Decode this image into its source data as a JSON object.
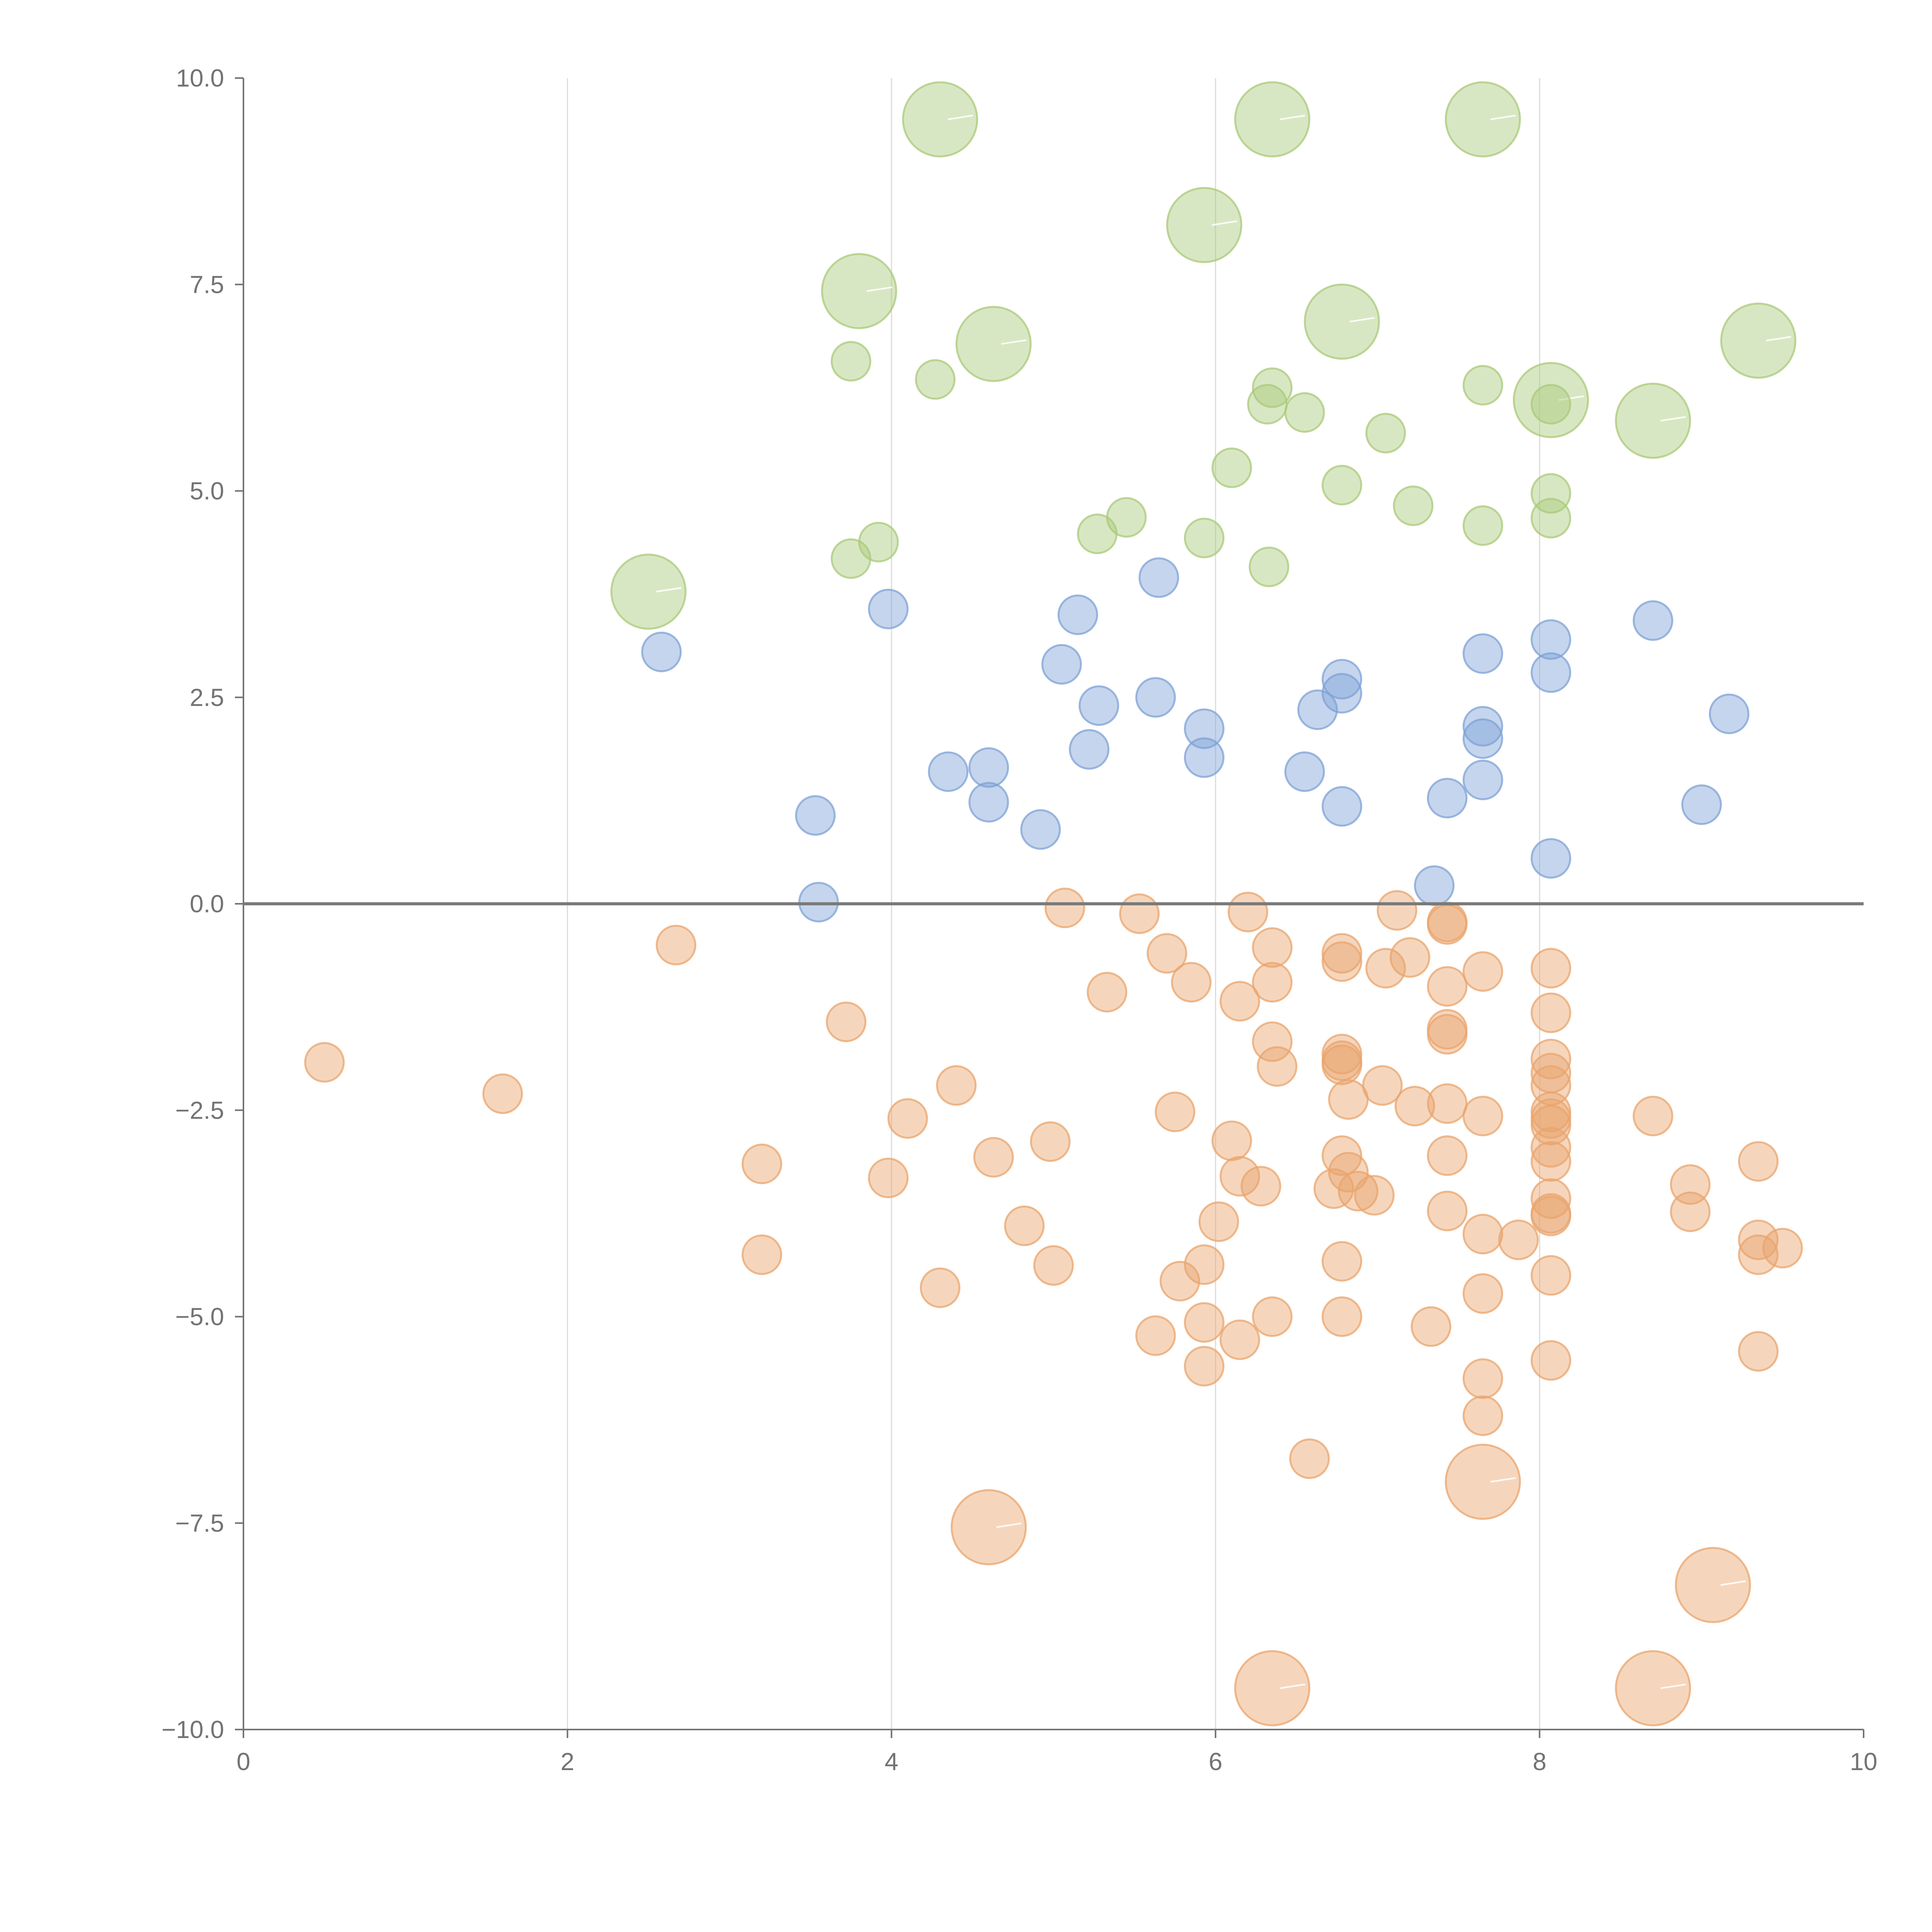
{
  "chart_data": {
    "type": "scatter",
    "title": "",
    "xlabel": "",
    "ylabel": "",
    "xlim": [
      0,
      10
    ],
    "ylim": [
      -10,
      10
    ],
    "x_ticks": [
      "0",
      "2",
      "4",
      "6",
      "8",
      "10"
    ],
    "y_ticks": [
      "10.0",
      "7.5",
      "5.0",
      "2.5",
      "0.0",
      "−2.5",
      "−5.0",
      "−7.5",
      "−10.0"
    ],
    "grid": "vertical only",
    "reference_line_y": 0,
    "colors": {
      "green": "#a9c97a",
      "blue": "#7ea1d6",
      "orange": "#e9a46c"
    },
    "series": [
      {
        "color_key": "green",
        "points": [
          [
            4.3,
            9.5,
            "large"
          ],
          [
            6.35,
            9.5,
            "large"
          ],
          [
            7.65,
            9.5,
            "large"
          ],
          [
            5.93,
            8.22,
            "large"
          ],
          [
            3.8,
            7.42,
            "large"
          ],
          [
            6.78,
            7.05,
            "large"
          ],
          [
            4.63,
            6.78,
            "large"
          ],
          [
            9.35,
            6.82,
            "large"
          ],
          [
            8.07,
            6.1,
            "large"
          ],
          [
            8.7,
            5.85,
            "large"
          ],
          [
            2.5,
            3.78,
            "large"
          ],
          [
            3.75,
            6.57,
            "small"
          ],
          [
            4.27,
            6.35,
            "small"
          ],
          [
            6.35,
            6.25,
            "small"
          ],
          [
            6.32,
            6.05,
            "small"
          ],
          [
            6.55,
            5.95,
            "small"
          ],
          [
            7.65,
            6.28,
            "small"
          ],
          [
            8.07,
            6.05,
            "small"
          ],
          [
            7.05,
            5.7,
            "small"
          ],
          [
            6.1,
            5.28,
            "small"
          ],
          [
            6.78,
            5.07,
            "small"
          ],
          [
            8.07,
            4.97,
            "small"
          ],
          [
            7.22,
            4.82,
            "small"
          ],
          [
            5.45,
            4.68,
            "small"
          ],
          [
            8.07,
            4.67,
            "small"
          ],
          [
            7.65,
            4.58,
            "small"
          ],
          [
            5.27,
            4.48,
            "small"
          ],
          [
            5.93,
            4.43,
            "small"
          ],
          [
            3.92,
            4.38,
            "small"
          ],
          [
            3.75,
            4.18,
            "small"
          ],
          [
            6.33,
            4.08,
            "small"
          ]
        ]
      },
      {
        "color_key": "blue",
        "points": [
          [
            5.65,
            3.95,
            "small"
          ],
          [
            3.98,
            3.57,
            "small"
          ],
          [
            5.15,
            3.5,
            "small"
          ],
          [
            8.7,
            3.43,
            "small"
          ],
          [
            8.07,
            3.2,
            "small"
          ],
          [
            2.58,
            3.05,
            "small"
          ],
          [
            7.65,
            3.03,
            "small"
          ],
          [
            5.05,
            2.9,
            "small"
          ],
          [
            8.07,
            2.8,
            "small"
          ],
          [
            6.78,
            2.72,
            "small"
          ],
          [
            6.78,
            2.55,
            "small"
          ],
          [
            5.63,
            2.5,
            "small"
          ],
          [
            5.28,
            2.4,
            "small"
          ],
          [
            6.63,
            2.35,
            "small"
          ],
          [
            9.17,
            2.3,
            "small"
          ],
          [
            5.93,
            2.12,
            "small"
          ],
          [
            7.65,
            2.15,
            "small"
          ],
          [
            7.65,
            2.0,
            "small"
          ],
          [
            5.22,
            1.87,
            "small"
          ],
          [
            5.93,
            1.77,
            "small"
          ],
          [
            4.6,
            1.65,
            "small"
          ],
          [
            4.35,
            1.6,
            "small"
          ],
          [
            6.55,
            1.6,
            "small"
          ],
          [
            7.65,
            1.5,
            "small"
          ],
          [
            7.43,
            1.28,
            "small"
          ],
          [
            4.6,
            1.23,
            "small"
          ],
          [
            6.78,
            1.18,
            "small"
          ],
          [
            9.0,
            1.2,
            "small"
          ],
          [
            3.53,
            1.07,
            "small"
          ],
          [
            4.92,
            0.9,
            "small"
          ],
          [
            8.07,
            0.55,
            "small"
          ],
          [
            7.35,
            0.22,
            "small"
          ],
          [
            3.55,
            0.02,
            "small"
          ]
        ]
      },
      {
        "color_key": "orange",
        "points": [
          [
            5.07,
            -0.05,
            "small"
          ],
          [
            5.53,
            -0.12,
            "small"
          ],
          [
            6.2,
            -0.1,
            "small"
          ],
          [
            7.12,
            -0.08,
            "small"
          ],
          [
            7.43,
            -0.22,
            "small"
          ],
          [
            7.43,
            -0.25,
            "small"
          ],
          [
            2.67,
            -0.5,
            "small"
          ],
          [
            6.35,
            -0.53,
            "small"
          ],
          [
            5.7,
            -0.6,
            "small"
          ],
          [
            6.78,
            -0.6,
            "small"
          ],
          [
            7.2,
            -0.65,
            "small"
          ],
          [
            6.78,
            -0.7,
            "small"
          ],
          [
            7.05,
            -0.78,
            "small"
          ],
          [
            8.07,
            -0.78,
            "small"
          ],
          [
            7.65,
            -0.82,
            "small"
          ],
          [
            5.85,
            -0.95,
            "small"
          ],
          [
            6.35,
            -0.95,
            "small"
          ],
          [
            7.43,
            -1.0,
            "small"
          ],
          [
            5.33,
            -1.07,
            "small"
          ],
          [
            6.15,
            -1.18,
            "small"
          ],
          [
            8.07,
            -1.32,
            "small"
          ],
          [
            3.72,
            -1.43,
            "small"
          ],
          [
            7.43,
            -1.52,
            "small"
          ],
          [
            7.43,
            -1.58,
            "small"
          ],
          [
            6.35,
            -1.67,
            "small"
          ],
          [
            6.78,
            -1.82,
            "small"
          ],
          [
            8.07,
            -1.88,
            "small"
          ],
          [
            6.78,
            -1.9,
            "small"
          ],
          [
            0.5,
            -1.92,
            "small"
          ],
          [
            6.78,
            -1.95,
            "small"
          ],
          [
            6.38,
            -1.97,
            "small"
          ],
          [
            8.07,
            -2.05,
            "small"
          ],
          [
            8.07,
            -2.2,
            "small"
          ],
          [
            7.03,
            -2.2,
            "small"
          ],
          [
            4.4,
            -2.2,
            "small"
          ],
          [
            1.6,
            -2.3,
            "small"
          ],
          [
            6.82,
            -2.37,
            "small"
          ],
          [
            7.43,
            -2.42,
            "small"
          ],
          [
            7.23,
            -2.45,
            "small"
          ],
          [
            5.75,
            -2.52,
            "small"
          ],
          [
            8.07,
            -2.52,
            "small"
          ],
          [
            8.07,
            -2.6,
            "small"
          ],
          [
            7.65,
            -2.57,
            "small"
          ],
          [
            8.7,
            -2.57,
            "small"
          ],
          [
            4.1,
            -2.6,
            "small"
          ],
          [
            8.07,
            -2.68,
            "small"
          ],
          [
            4.98,
            -2.88,
            "small"
          ],
          [
            6.1,
            -2.87,
            "small"
          ],
          [
            8.07,
            -2.95,
            "small"
          ],
          [
            6.78,
            -3.05,
            "small"
          ],
          [
            7.43,
            -3.05,
            "small"
          ],
          [
            4.63,
            -3.07,
            "small"
          ],
          [
            9.35,
            -3.12,
            "small"
          ],
          [
            3.2,
            -3.15,
            "small"
          ],
          [
            8.07,
            -3.12,
            "small"
          ],
          [
            6.82,
            -3.25,
            "small"
          ],
          [
            6.15,
            -3.3,
            "small"
          ],
          [
            3.98,
            -3.32,
            "small"
          ],
          [
            8.93,
            -3.4,
            "small"
          ],
          [
            6.28,
            -3.42,
            "small"
          ],
          [
            6.73,
            -3.45,
            "small"
          ],
          [
            6.88,
            -3.48,
            "small"
          ],
          [
            6.98,
            -3.53,
            "small"
          ],
          [
            8.07,
            -3.57,
            "small"
          ],
          [
            7.43,
            -3.72,
            "small"
          ],
          [
            8.93,
            -3.73,
            "small"
          ],
          [
            8.07,
            -3.75,
            "small"
          ],
          [
            8.07,
            -3.78,
            "small"
          ],
          [
            6.02,
            -3.85,
            "small"
          ],
          [
            4.82,
            -3.9,
            "small"
          ],
          [
            7.65,
            -4.0,
            "small"
          ],
          [
            7.87,
            -4.07,
            "small"
          ],
          [
            9.35,
            -4.07,
            "small"
          ],
          [
            9.5,
            -4.17,
            "small"
          ],
          [
            3.2,
            -4.25,
            "small"
          ],
          [
            9.35,
            -4.25,
            "small"
          ],
          [
            5.0,
            -4.38,
            "small"
          ],
          [
            6.78,
            -4.33,
            "small"
          ],
          [
            5.93,
            -4.37,
            "small"
          ],
          [
            8.07,
            -4.5,
            "small"
          ],
          [
            5.78,
            -4.57,
            "small"
          ],
          [
            4.3,
            -4.65,
            "small"
          ],
          [
            7.65,
            -4.72,
            "small"
          ],
          [
            6.35,
            -5.0,
            "small"
          ],
          [
            6.78,
            -5.0,
            "small"
          ],
          [
            5.93,
            -5.07,
            "small"
          ],
          [
            7.33,
            -5.12,
            "small"
          ],
          [
            5.63,
            -5.23,
            "small"
          ],
          [
            6.15,
            -5.28,
            "small"
          ],
          [
            9.35,
            -5.42,
            "small"
          ],
          [
            8.07,
            -5.53,
            "small"
          ],
          [
            5.93,
            -5.6,
            "small"
          ],
          [
            7.65,
            -5.75,
            "small"
          ],
          [
            7.65,
            -6.2,
            "small"
          ],
          [
            6.58,
            -6.72,
            "small"
          ],
          [
            7.65,
            -7.0,
            "large"
          ],
          [
            4.6,
            -7.55,
            "large"
          ],
          [
            9.07,
            -8.25,
            "large"
          ],
          [
            6.35,
            -9.5,
            "large"
          ],
          [
            8.7,
            -9.5,
            "large"
          ]
        ]
      }
    ]
  }
}
